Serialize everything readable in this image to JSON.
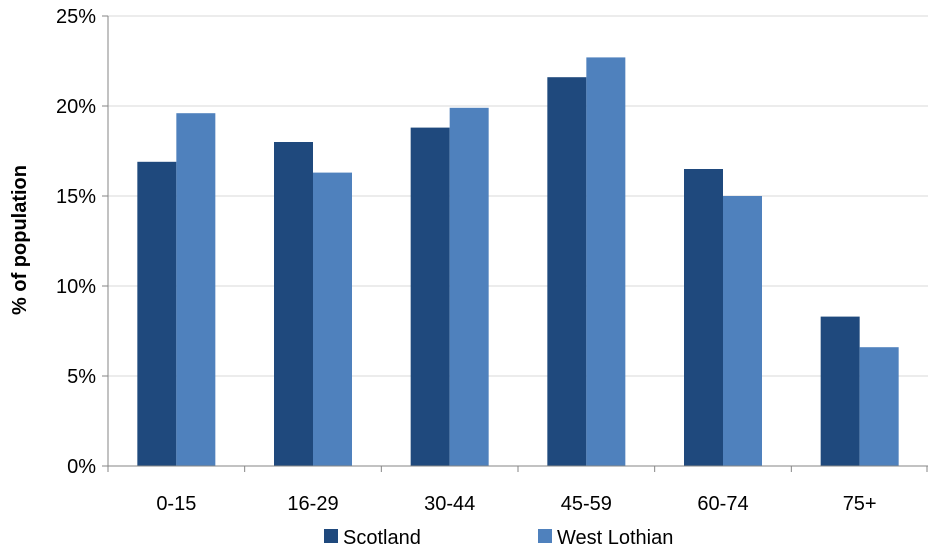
{
  "chart_data": {
    "type": "bar",
    "title": "",
    "xlabel": "",
    "ylabel": "% of population",
    "categories": [
      "0-15",
      "16-29",
      "30-44",
      "45-59",
      "60-74",
      "75+"
    ],
    "series": [
      {
        "name": "Scotland",
        "color": "#1f497d",
        "values": [
          16.9,
          18.0,
          18.8,
          21.6,
          16.5,
          8.3
        ]
      },
      {
        "name": "West Lothian",
        "color": "#4f81bd",
        "values": [
          19.6,
          16.3,
          19.9,
          22.7,
          15.0,
          6.6
        ]
      }
    ],
    "ylim": [
      0,
      25
    ],
    "yticks": [
      0,
      5,
      10,
      15,
      20,
      25
    ],
    "ytick_labels": [
      "0%",
      "5%",
      "10%",
      "15%",
      "20%",
      "25%"
    ],
    "grid": true,
    "legend_position": "bottom"
  }
}
